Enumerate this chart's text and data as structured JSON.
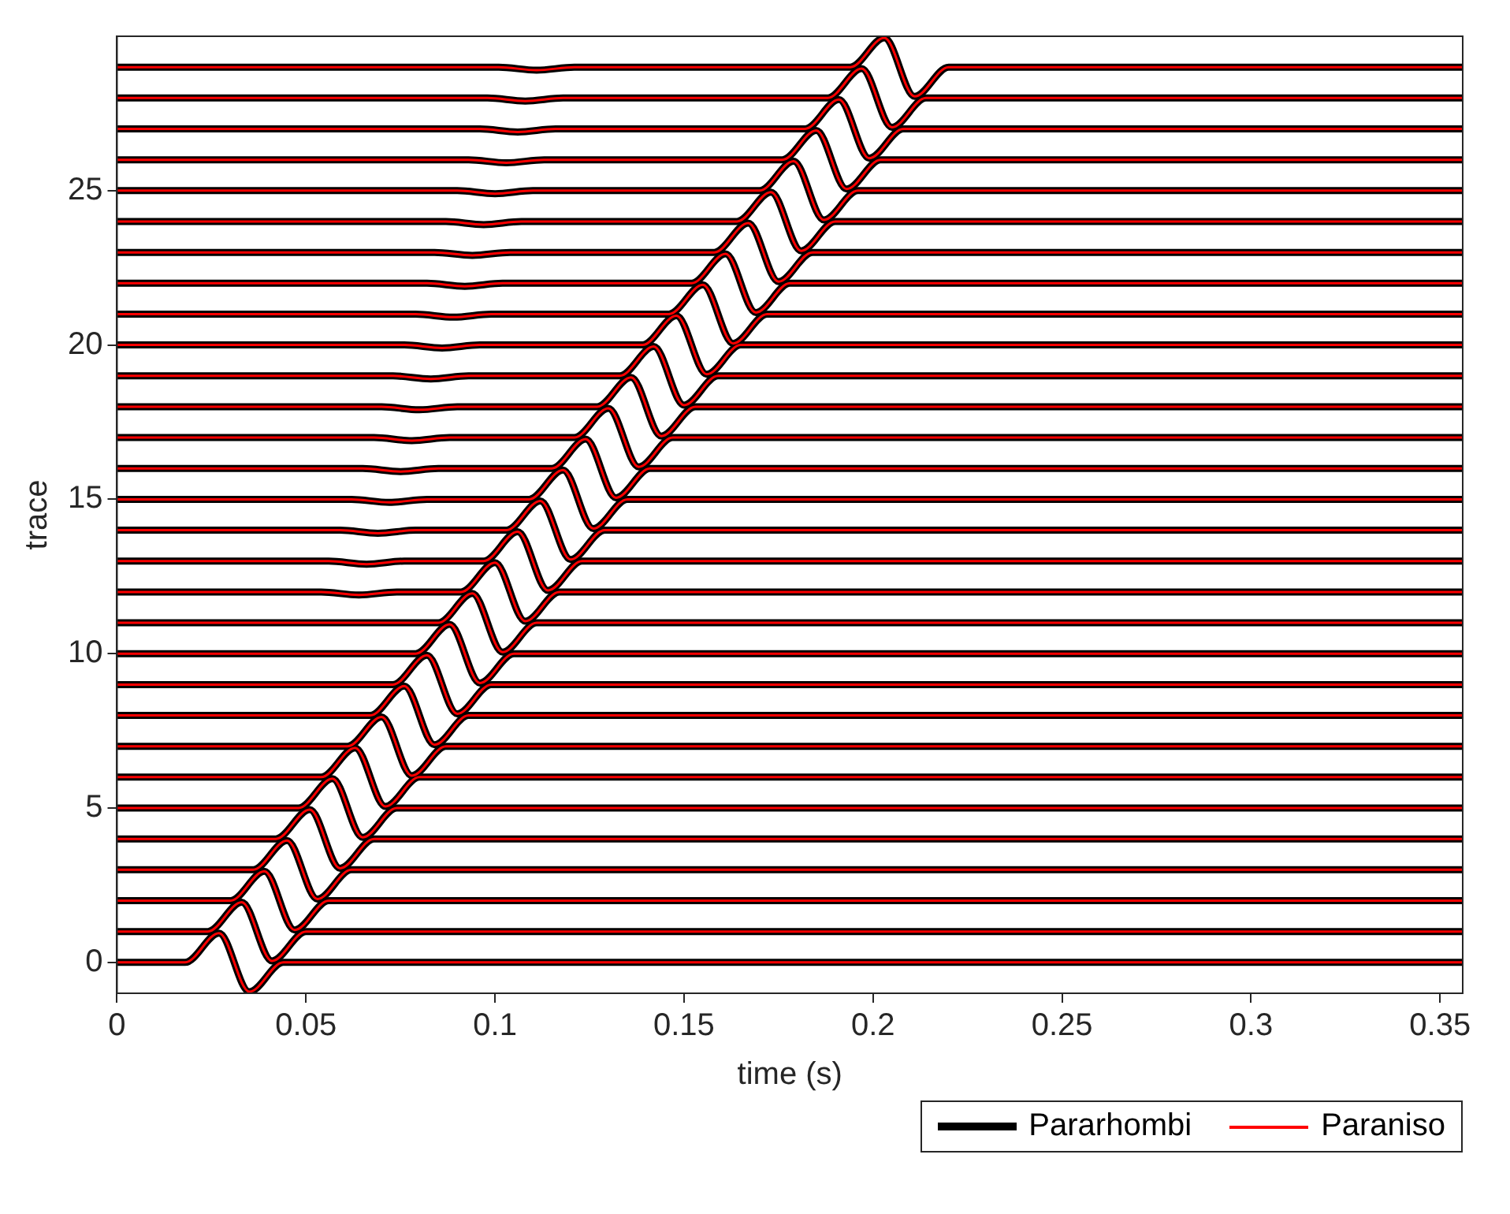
{
  "chart_data": {
    "type": "line",
    "xlabel": "time (s)",
    "ylabel": "trace",
    "xlim": [
      0,
      0.356
    ],
    "ylim": [
      -1,
      30
    ],
    "xticks": [
      0,
      0.05,
      0.1,
      0.15,
      0.2,
      0.25,
      0.3,
      0.35
    ],
    "yticks": [
      0,
      5,
      10,
      15,
      20,
      25
    ],
    "grid": false,
    "legend": "bottom right",
    "marker": "none",
    "line_style": "solid",
    "x": [
      0,
      0.018,
      0.027,
      0.035,
      0.044,
      0.356,
      0,
      0.024,
      0.033,
      0.041,
      0.05,
      0.356,
      0,
      0.03,
      0.039,
      0.047,
      0.056,
      0.356,
      0,
      0.036,
      0.045,
      0.053,
      0.062,
      0.356,
      0,
      0.042,
      0.051,
      0.059,
      0.068,
      0.356,
      0,
      0.048,
      0.057,
      0.065,
      0.074,
      0.356,
      0,
      0.054,
      0.063,
      0.071,
      0.08,
      0.356,
      0,
      0.061,
      0.07,
      0.078,
      0.087,
      0.356,
      0,
      0.067,
      0.076,
      0.084,
      0.093,
      0.356,
      0,
      0.073,
      0.082,
      0.09,
      0.099,
      0.356,
      0,
      0.079,
      0.088,
      0.096,
      0.105,
      0.356,
      0,
      0.085,
      0.094,
      0.102,
      0.111,
      0.356,
      0,
      0.054,
      0.064,
      0.074,
      0.091,
      0.1,
      0.108,
      0.117,
      0.356,
      0,
      0.056,
      0.066,
      0.076,
      0.097,
      0.106,
      0.114,
      0.123,
      0.356,
      0,
      0.059,
      0.069,
      0.079,
      0.103,
      0.112,
      0.12,
      0.129,
      0.356,
      0,
      0.062,
      0.072,
      0.082,
      0.109,
      0.118,
      0.126,
      0.135,
      0.356,
      0,
      0.065,
      0.075,
      0.085,
      0.115,
      0.124,
      0.132,
      0.141,
      0.356,
      0,
      0.068,
      0.078,
      0.088,
      0.121,
      0.13,
      0.138,
      0.147,
      0.356,
      0,
      0.07,
      0.08,
      0.09,
      0.127,
      0.136,
      0.144,
      0.153,
      0.356,
      0,
      0.073,
      0.083,
      0.093,
      0.133,
      0.142,
      0.15,
      0.159,
      0.356,
      0,
      0.076,
      0.086,
      0.096,
      0.139,
      0.148,
      0.156,
      0.165,
      0.356,
      0,
      0.079,
      0.089,
      0.099,
      0.146,
      0.155,
      0.163,
      0.172,
      0.356,
      0,
      0.082,
      0.092,
      0.102,
      0.152,
      0.161,
      0.169,
      0.178,
      0.356,
      0,
      0.084,
      0.094,
      0.104,
      0.158,
      0.167,
      0.175,
      0.184,
      0.356,
      0,
      0.087,
      0.097,
      0.107,
      0.164,
      0.173,
      0.181,
      0.19,
      0.356,
      0,
      0.09,
      0.1,
      0.11,
      0.17,
      0.179,
      0.187,
      0.196,
      0.356,
      0,
      0.093,
      0.103,
      0.113,
      0.176,
      0.185,
      0.193,
      0.202,
      0.356,
      0,
      0.096,
      0.106,
      0.116,
      0.182,
      0.191,
      0.199,
      0.208,
      0.356,
      0,
      0.098,
      0.108,
      0.118,
      0.188,
      0.197,
      0.205,
      0.214,
      0.356,
      0,
      0.101,
      0.111,
      0.121,
      0.194,
      0.203,
      0.211,
      0.22,
      0.356
    ],
    "series": [
      {
        "name": "Pararhombi",
        "color": "#000000",
        "values": [
          0,
          0,
          0.95,
          -0.95,
          0,
          0,
          1,
          1,
          1.95,
          0.05,
          1,
          1,
          2,
          2,
          2.95,
          1.05,
          2,
          2,
          3,
          3,
          3.95,
          2.05,
          3,
          3,
          4,
          4,
          4.95,
          3.05,
          4,
          4,
          5,
          5,
          5.95,
          4.05,
          5,
          5,
          6,
          6,
          6.95,
          5.05,
          6,
          6,
          7,
          7,
          7.95,
          6.05,
          7,
          7,
          8,
          8,
          8.95,
          7.05,
          8,
          8,
          9,
          9,
          9.95,
          8.05,
          9,
          9,
          10,
          10,
          10.95,
          9.05,
          10,
          10,
          11,
          11,
          11.95,
          10.05,
          11,
          11,
          12,
          12,
          11.9,
          12,
          12,
          12.95,
          11.05,
          12,
          12,
          13,
          13,
          12.9,
          13,
          13,
          13.95,
          12.05,
          13,
          13,
          14,
          14,
          13.9,
          14,
          14,
          14.95,
          13.05,
          14,
          14,
          15,
          15,
          14.9,
          15,
          15,
          15.95,
          14.05,
          15,
          15,
          16,
          16,
          15.9,
          16,
          16,
          16.95,
          15.05,
          16,
          16,
          17,
          17,
          16.9,
          17,
          17,
          17.95,
          16.05,
          17,
          17,
          18,
          18,
          17.9,
          18,
          18,
          18.95,
          17.05,
          18,
          18,
          19,
          19,
          18.9,
          19,
          19,
          19.95,
          18.05,
          19,
          19,
          20,
          20,
          19.9,
          20,
          20,
          20.95,
          19.05,
          20,
          20,
          21,
          21,
          20.9,
          21,
          21,
          21.95,
          20.05,
          21,
          21,
          22,
          22,
          21.9,
          22,
          22,
          22.95,
          21.05,
          22,
          22,
          23,
          23,
          22.9,
          23,
          23,
          23.95,
          22.05,
          23,
          23,
          24,
          24,
          23.9,
          24,
          24,
          24.95,
          23.05,
          24,
          24,
          25,
          25,
          24.9,
          25,
          25,
          25.95,
          24.05,
          25,
          25,
          26,
          26,
          25.9,
          26,
          26,
          26.95,
          25.05,
          26,
          26,
          27,
          27,
          26.9,
          27,
          27,
          27.95,
          26.05,
          27,
          27,
          28,
          28,
          27.9,
          28,
          28,
          28.95,
          27.05,
          28,
          28,
          29,
          29,
          28.9,
          29,
          29,
          29.95,
          28.05,
          29,
          29
        ]
      },
      {
        "name": "Paraniso",
        "color": "#ff0000",
        "values": [
          0,
          0,
          0.95,
          -0.95,
          0,
          0,
          1,
          1,
          1.95,
          0.05,
          1,
          1,
          2,
          2,
          2.95,
          1.05,
          2,
          2,
          3,
          3,
          3.95,
          2.05,
          3,
          3,
          4,
          4,
          4.95,
          3.05,
          4,
          4,
          5,
          5,
          5.95,
          4.05,
          5,
          5,
          6,
          6,
          6.95,
          5.05,
          6,
          6,
          7,
          7,
          7.95,
          6.05,
          7,
          7,
          8,
          8,
          8.95,
          7.05,
          8,
          8,
          9,
          9,
          9.95,
          8.05,
          9,
          9,
          10,
          10,
          10.95,
          9.05,
          10,
          10,
          11,
          11,
          11.95,
          10.05,
          11,
          11,
          12,
          12,
          11.9,
          12,
          12,
          12.95,
          11.05,
          12,
          12,
          13,
          13,
          12.9,
          13,
          13,
          13.95,
          12.05,
          13,
          13,
          14,
          14,
          13.9,
          14,
          14,
          14.95,
          13.05,
          14,
          14,
          15,
          15,
          14.9,
          15,
          15,
          15.95,
          14.05,
          15,
          15,
          16,
          16,
          15.9,
          16,
          16,
          16.95,
          15.05,
          16,
          16,
          17,
          17,
          16.9,
          17,
          17,
          17.95,
          16.05,
          17,
          17,
          18,
          18,
          17.9,
          18,
          18,
          18.95,
          17.05,
          18,
          18,
          19,
          19,
          18.9,
          19,
          19,
          19.95,
          18.05,
          19,
          19,
          20,
          20,
          19.9,
          20,
          20,
          20.95,
          19.05,
          20,
          20,
          21,
          21,
          20.9,
          21,
          21,
          21.95,
          20.05,
          21,
          21,
          22,
          22,
          21.9,
          22,
          22,
          22.95,
          21.05,
          22,
          22,
          23,
          23,
          22.9,
          23,
          23,
          23.95,
          22.05,
          23,
          23,
          24,
          24,
          23.9,
          24,
          24,
          24.95,
          23.05,
          24,
          24,
          25,
          25,
          24.9,
          25,
          25,
          25.95,
          24.05,
          25,
          25,
          26,
          26,
          25.9,
          26,
          26,
          26.95,
          25.05,
          26,
          26,
          27,
          27,
          26.9,
          27,
          27,
          27.95,
          26.05,
          27,
          27,
          28,
          28,
          27.9,
          28,
          28,
          28.95,
          27.05,
          28,
          28,
          29,
          29,
          28.9,
          29,
          29,
          29.95,
          28.05,
          29,
          29
        ]
      }
    ]
  }
}
